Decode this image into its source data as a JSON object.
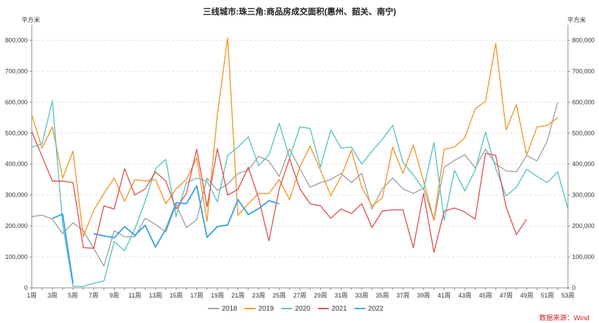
{
  "chart_data": {
    "type": "line",
    "title": "三线城市:珠三角:商品房成交面积(惠州、韶关、南宁)",
    "ylabel_left": "平方米",
    "ylabel_right": "平方米",
    "source": "数据来源：Wind",
    "ylim": [
      0,
      850000
    ],
    "y_ticks": [
      "0",
      "100,000",
      "200,000",
      "300,000",
      "400,000",
      "500,000",
      "600,000",
      "700,000",
      "800,000"
    ],
    "x_ticks": [
      "1周",
      "3周",
      "5周",
      "7周",
      "9周",
      "11周",
      "13周",
      "15周",
      "17周",
      "19周",
      "21周",
      "23周",
      "25周",
      "27周",
      "29周",
      "31周",
      "33周",
      "35周",
      "37周",
      "39周",
      "41周",
      "43周",
      "45周",
      "47周",
      "49周",
      "51周",
      "53周"
    ],
    "legend_position": "bottom",
    "grid": true,
    "weeks": [
      1,
      2,
      3,
      4,
      5,
      6,
      7,
      8,
      9,
      10,
      11,
      12,
      13,
      14,
      15,
      16,
      17,
      18,
      19,
      20,
      21,
      22,
      23,
      24,
      25,
      26,
      27,
      28,
      29,
      30,
      31,
      32,
      33,
      34,
      35,
      36,
      37,
      38,
      39,
      40,
      41,
      42,
      43,
      44,
      45,
      46,
      47,
      48,
      49,
      50,
      51,
      52,
      53
    ],
    "series": [
      {
        "name": "2018",
        "color": "#a0a0a0",
        "values": [
          230000,
          235000,
          222000,
          175000,
          210000,
          185000,
          128000,
          70000,
          185000,
          165000,
          165000,
          225000,
          205000,
          180000,
          270000,
          195000,
          220000,
          355000,
          315000,
          335000,
          370000,
          380000,
          425000,
          410000,
          360000,
          450000,
          385000,
          325000,
          340000,
          350000,
          370000,
          340000,
          370000,
          255000,
          320000,
          355000,
          320000,
          305000,
          322000,
          218000,
          390000,
          412000,
          430000,
          388000,
          448000,
          400000,
          378000,
          375000,
          428000,
          410000,
          475000,
          600000,
          null
        ]
      },
      {
        "name": "2019",
        "color": "#f0962a",
        "values": [
          560000,
          452000,
          520000,
          355000,
          442000,
          165000,
          250000,
          305000,
          355000,
          280000,
          350000,
          345000,
          350000,
          272000,
          320000,
          350000,
          420000,
          215000,
          560000,
          808000,
          235000,
          272000,
          305000,
          305000,
          350000,
          285000,
          390000,
          458000,
          380000,
          298000,
          360000,
          445000,
          325000,
          265000,
          290000,
          455000,
          370000,
          462000,
          345000,
          220000,
          448000,
          455000,
          485000,
          578000,
          603000,
          790000,
          510000,
          592000,
          430000,
          520000,
          525000,
          550000,
          null
        ]
      },
      {
        "name": "2020",
        "color": "#58c2c0",
        "values": [
          455000,
          465000,
          605000,
          205000,
          5000,
          5000,
          15000,
          22000,
          150000,
          120000,
          190000,
          280000,
          385000,
          415000,
          230000,
          340000,
          355000,
          345000,
          278000,
          428000,
          455000,
          488000,
          395000,
          430000,
          532000,
          420000,
          520000,
          515000,
          390000,
          510000,
          452000,
          455000,
          400000,
          442000,
          480000,
          525000,
          405000,
          365000,
          318000,
          470000,
          218000,
          380000,
          313000,
          380000,
          503000,
          385000,
          297000,
          325000,
          383000,
          360000,
          340000,
          375000,
          255000
        ]
      },
      {
        "name": "2021",
        "color": "#dc5352",
        "values": [
          505000,
          425000,
          345000,
          345000,
          340000,
          130000,
          128000,
          265000,
          255000,
          385000,
          300000,
          320000,
          375000,
          345000,
          255000,
          305000,
          448000,
          262000,
          450000,
          300000,
          318000,
          390000,
          290000,
          152000,
          320000,
          418000,
          320000,
          272000,
          265000,
          225000,
          255000,
          240000,
          272000,
          195000,
          248000,
          252000,
          252000,
          130000,
          305000,
          115000,
          248000,
          258000,
          245000,
          222000,
          435000,
          428000,
          262000,
          172000,
          222000,
          null,
          null,
          null,
          null
        ]
      },
      {
        "name": "2022",
        "color": "#3fa6e0",
        "values": [
          null,
          null,
          225000,
          238000,
          15000,
          null,
          175000,
          168000,
          162000,
          198000,
          170000,
          202000,
          132000,
          190000,
          275000,
          272000,
          330000,
          163000,
          198000,
          203000,
          285000,
          237000,
          256000,
          282000,
          272000,
          null,
          null,
          null,
          null,
          null,
          null,
          null,
          null,
          null,
          null,
          null,
          null,
          null,
          null,
          null,
          null,
          null,
          null,
          null,
          null,
          null,
          null,
          null,
          null,
          null,
          null,
          null,
          null
        ]
      }
    ]
  }
}
